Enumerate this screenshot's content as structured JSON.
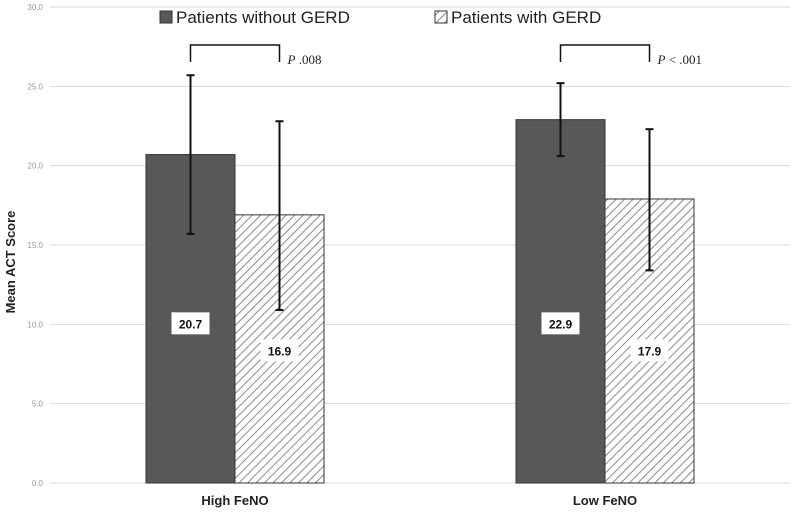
{
  "chart_data": {
    "type": "bar",
    "title": "",
    "xlabel": "",
    "ylabel": "Mean ACT Score",
    "ylim": [
      0,
      30
    ],
    "yticks": [
      "0.0",
      "5.0",
      "10.0",
      "15.0",
      "20.0",
      "25.0",
      "30.0"
    ],
    "categories": [
      "High FeNO",
      "Low FeNO"
    ],
    "legend_position": "top",
    "grid": true,
    "series": [
      {
        "name": "Patients without GERD",
        "values": [
          20.7,
          22.9
        ],
        "error_low": [
          15.7,
          20.6
        ],
        "error_high": [
          25.7,
          25.2
        ],
        "labels": [
          "20.7",
          "22.9"
        ],
        "color": "#585858",
        "pattern": "solid"
      },
      {
        "name": "Patients with GERD",
        "values": [
          16.9,
          17.9
        ],
        "error_low": [
          10.9,
          13.4
        ],
        "error_high": [
          22.8,
          22.3
        ],
        "labels": [
          "16.9",
          "17.9"
        ],
        "color": "#ffffff",
        "pattern": "hatched"
      }
    ],
    "annotations": [
      {
        "category": "High FeNO",
        "p_label": "P",
        "p_rest": " .008"
      },
      {
        "category": "Low FeNO",
        "p_label": "P",
        "p_rest": " < .001"
      }
    ]
  }
}
